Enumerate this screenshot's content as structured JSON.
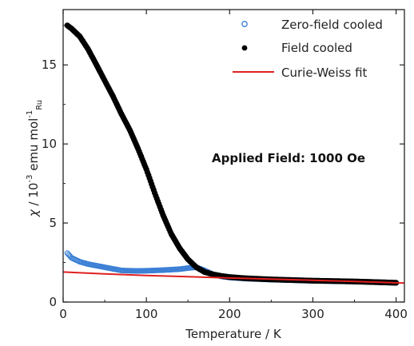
{
  "chart_data": {
    "type": "scatter",
    "title": "",
    "xlabel": "Temperature / K",
    "ylabel": {
      "chi": "χ",
      "middle": " / 10",
      "exp1": "-3",
      "unit": " emu mol",
      "exp2": "-1",
      "sub": "Ru"
    },
    "xlim": [
      0,
      410
    ],
    "ylim": [
      0,
      18.5
    ],
    "xticks": [
      0,
      100,
      200,
      300,
      400
    ],
    "yticks": [
      0,
      5,
      10,
      15
    ],
    "grid": false,
    "legend_position": "top-right",
    "annotation": "Applied Field: 1000 Oe",
    "series": [
      {
        "name": "Zero-field cooled",
        "style": "open-circle",
        "color": "#3a7fd5",
        "x": [
          5,
          10,
          20,
          30,
          40,
          50,
          60,
          70,
          80,
          90,
          100,
          110,
          120,
          130,
          140,
          150,
          160,
          170,
          180,
          190,
          200,
          220,
          250,
          300,
          350,
          400
        ],
        "y": [
          3.1,
          2.8,
          2.55,
          2.4,
          2.3,
          2.2,
          2.1,
          2.0,
          1.98,
          1.97,
          1.98,
          2.0,
          2.02,
          2.05,
          2.08,
          2.15,
          2.2,
          2.0,
          1.75,
          1.62,
          1.55,
          1.48,
          1.42,
          1.35,
          1.3,
          1.22
        ]
      },
      {
        "name": "Field cooled",
        "style": "filled-circle",
        "color": "#000000",
        "x": [
          5,
          10,
          20,
          30,
          40,
          50,
          60,
          70,
          80,
          90,
          100,
          110,
          120,
          130,
          140,
          150,
          160,
          170,
          180,
          190,
          200,
          220,
          250,
          300,
          350,
          400
        ],
        "y": [
          17.5,
          17.3,
          16.8,
          16.0,
          15.0,
          14.0,
          13.0,
          11.9,
          10.9,
          9.7,
          8.4,
          6.9,
          5.5,
          4.3,
          3.4,
          2.7,
          2.2,
          1.9,
          1.75,
          1.65,
          1.58,
          1.5,
          1.43,
          1.35,
          1.3,
          1.22
        ]
      },
      {
        "name": "Curie-Weiss fit",
        "style": "line",
        "color": "#e02020",
        "x": [
          0,
          50,
          100,
          150,
          200,
          250,
          300,
          350,
          410
        ],
        "y": [
          1.9,
          1.78,
          1.68,
          1.6,
          1.52,
          1.45,
          1.38,
          1.3,
          1.2
        ]
      }
    ]
  }
}
